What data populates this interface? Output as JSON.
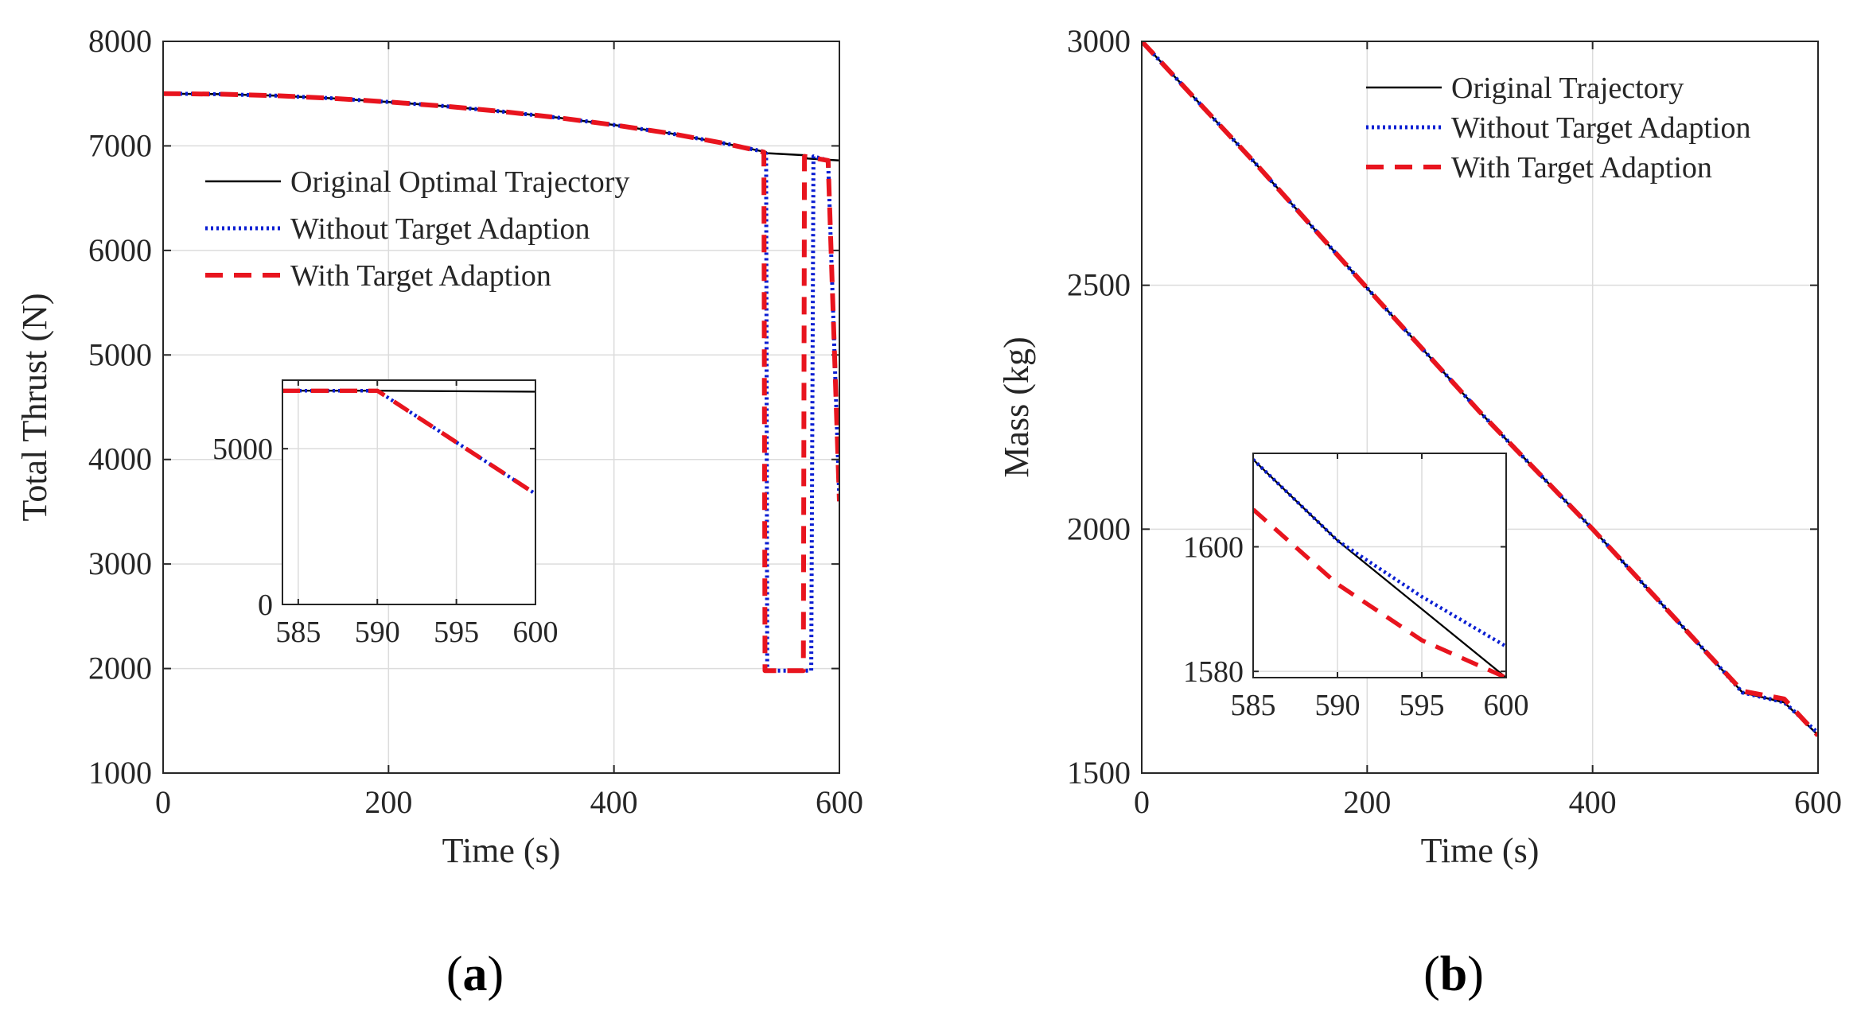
{
  "panels": [
    {
      "panel_label": "(a)",
      "panel_letter": "a",
      "chart_data": {
        "type": "line",
        "title": "",
        "xlabel": "Time (s)",
        "ylabel": "Total Thrust (N)",
        "xlim": [
          0,
          600
        ],
        "ylim": [
          1000,
          8000
        ],
        "xticks": [
          0,
          200,
          400,
          600
        ],
        "yticks": [
          1000,
          2000,
          3000,
          4000,
          5000,
          6000,
          7000,
          8000
        ],
        "grid": true,
        "legend_position": "upper-left",
        "series": [
          {
            "name": "Original Optimal Trajectory",
            "color": "#000000",
            "style": "solid",
            "x": [
              0,
              50,
              100,
              150,
              200,
              250,
              300,
              350,
              400,
              450,
              500,
              535,
              536,
              570,
              571,
              600
            ],
            "y": [
              7500,
              7495,
              7480,
              7455,
              7420,
              7380,
              7330,
              7270,
              7200,
              7120,
              7020,
              6940,
              6930,
              6910,
              6880,
              6860
            ]
          },
          {
            "name": "Without Target Adaption",
            "color": "#0a1ed2",
            "style": "dotted",
            "x": [
              0,
              50,
              100,
              150,
              200,
              250,
              300,
              350,
              400,
              450,
              500,
              535,
              536,
              575,
              577,
              590,
              600
            ],
            "y": [
              7500,
              7495,
              7480,
              7455,
              7420,
              7380,
              7330,
              7270,
              7200,
              7120,
              7020,
              6940,
              1980,
              1980,
              6900,
              6860,
              3600
            ]
          },
          {
            "name": "With Target Adaption",
            "color": "#e8141e",
            "style": "dashed",
            "x": [
              0,
              50,
              100,
              150,
              200,
              250,
              300,
              350,
              400,
              450,
              500,
              533,
              534,
              568,
              569,
              590,
              600
            ],
            "y": [
              7500,
              7495,
              7480,
              7455,
              7420,
              7380,
              7330,
              7270,
              7200,
              7120,
              7020,
              6940,
              1980,
              1980,
              6900,
              6860,
              3600
            ]
          }
        ],
        "inset": {
          "xlim": [
            584,
            600
          ],
          "ylim": [
            0,
            7200
          ],
          "xticks": [
            585,
            590,
            595,
            600
          ],
          "yticks": [
            0,
            5000
          ],
          "grid": true,
          "series": [
            {
              "name": "Original Optimal Trajectory",
              "color": "#000000",
              "style": "solid",
              "x": [
                584,
                590,
                600
              ],
              "y": [
                6860,
                6860,
                6830
              ]
            },
            {
              "name": "Without Target Adaption",
              "color": "#0a1ed2",
              "style": "dotted",
              "x": [
                584,
                590,
                600
              ],
              "y": [
                6860,
                6860,
                3550
              ]
            },
            {
              "name": "With Target Adaption",
              "color": "#e8141e",
              "style": "dashed",
              "x": [
                584,
                590,
                600
              ],
              "y": [
                6860,
                6860,
                3550
              ]
            }
          ]
        }
      }
    },
    {
      "panel_label": "(b)",
      "panel_letter": "b",
      "chart_data": {
        "type": "line",
        "title": "",
        "xlabel": "Time (s)",
        "ylabel": "Mass (kg)",
        "xlim": [
          0,
          600
        ],
        "ylim": [
          1500,
          3000
        ],
        "xticks": [
          0,
          200,
          400,
          600
        ],
        "yticks": [
          1500,
          2000,
          2500,
          3000
        ],
        "grid": true,
        "legend_position": "upper-right",
        "series": [
          {
            "name": "Original Trajectory",
            "color": "#000000",
            "style": "solid",
            "x": [
              0,
              100,
              200,
              300,
              400,
              500,
              533,
              570,
              600
            ],
            "y": [
              3000,
              2752,
              2494,
              2240,
              2000,
              1750,
              1665,
              1645,
              1578
            ]
          },
          {
            "name": "Without Target Adaption",
            "color": "#0a1ed2",
            "style": "dotted",
            "x": [
              0,
              100,
              200,
              300,
              400,
              500,
              533,
              570,
              600
            ],
            "y": [
              3000,
              2752,
              2494,
              2240,
              2000,
              1750,
              1665,
              1645,
              1582
            ]
          },
          {
            "name": "With Target Adaption",
            "color": "#e8141e",
            "style": "dashed",
            "x": [
              0,
              100,
              200,
              300,
              400,
              500,
              533,
              570,
              600
            ],
            "y": [
              3000,
              2752,
              2494,
              2240,
              2000,
              1750,
              1668,
              1652,
              1577
            ]
          }
        ],
        "inset": {
          "xlim": [
            585,
            600
          ],
          "ylim": [
            1579,
            1615
          ],
          "xticks": [
            585,
            590,
            595,
            600
          ],
          "yticks": [
            1580,
            1600
          ],
          "grid": true,
          "series": [
            {
              "name": "Original Trajectory",
              "color": "#000000",
              "style": "solid",
              "x": [
                585,
                590,
                595,
                600
              ],
              "y": [
                1614,
                1601,
                1590,
                1579
              ]
            },
            {
              "name": "Without Target Adaption",
              "color": "#0a1ed2",
              "style": "dotted",
              "x": [
                585,
                590,
                595,
                600
              ],
              "y": [
                1614,
                1601,
                1592,
                1584
              ]
            },
            {
              "name": "With Target Adaption",
              "color": "#e8141e",
              "style": "dashed",
              "x": [
                585,
                590,
                595,
                600
              ],
              "y": [
                1606,
                1594,
                1585,
                1579
              ]
            }
          ]
        }
      }
    }
  ]
}
